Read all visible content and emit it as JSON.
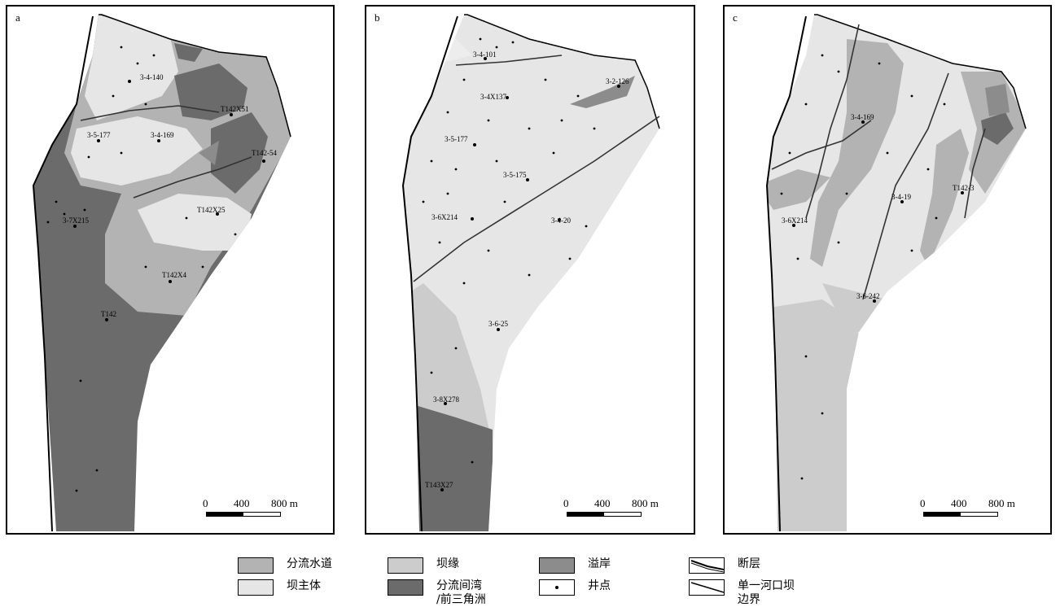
{
  "panels": [
    {
      "label": "a",
      "wells": [
        "3-4-140",
        "T142X51",
        "3-5-177",
        "3-4-169",
        "T142-54",
        "T142X25",
        "3-7X215",
        "T142X4",
        "T142"
      ]
    },
    {
      "label": "b",
      "wells": [
        "3-4-101",
        "3-2-126",
        "3-4X137",
        "3-5-177",
        "3-5-175",
        "3-6X214",
        "3-4-20",
        "3-6-25",
        "3-8X278",
        "T143X27"
      ]
    },
    {
      "label": "c",
      "wells": [
        "3-4-169",
        "3-4-19",
        "T142-3",
        "3-6X214",
        "3-6-242"
      ]
    }
  ],
  "scale": {
    "zero": "0",
    "mid": "400",
    "max": "800 m"
  },
  "legend": [
    {
      "label": "分流水道",
      "color": "#b3b3b3"
    },
    {
      "label": "坝缘",
      "color": "#cccccc"
    },
    {
      "label": "溢岸",
      "color": "#8c8c8c"
    },
    {
      "label": "断层",
      "icon": "fault-symbol"
    },
    {
      "label": "坝主体",
      "color": "#e6e6e6"
    },
    {
      "label": "分流间湾\n/前三角洲",
      "color": "#6b6b6b"
    },
    {
      "label": "井点",
      "icon": "well-dot"
    },
    {
      "label": "单一河口坝\n边界",
      "icon": "bar-boundary-symbol"
    }
  ],
  "colors": {
    "main_bar": "#e6e6e6",
    "bar_margin": "#cccccc",
    "channel": "#b3b3b3",
    "overbank": "#8c8c8c",
    "interdistributary": "#6b6b6b"
  }
}
